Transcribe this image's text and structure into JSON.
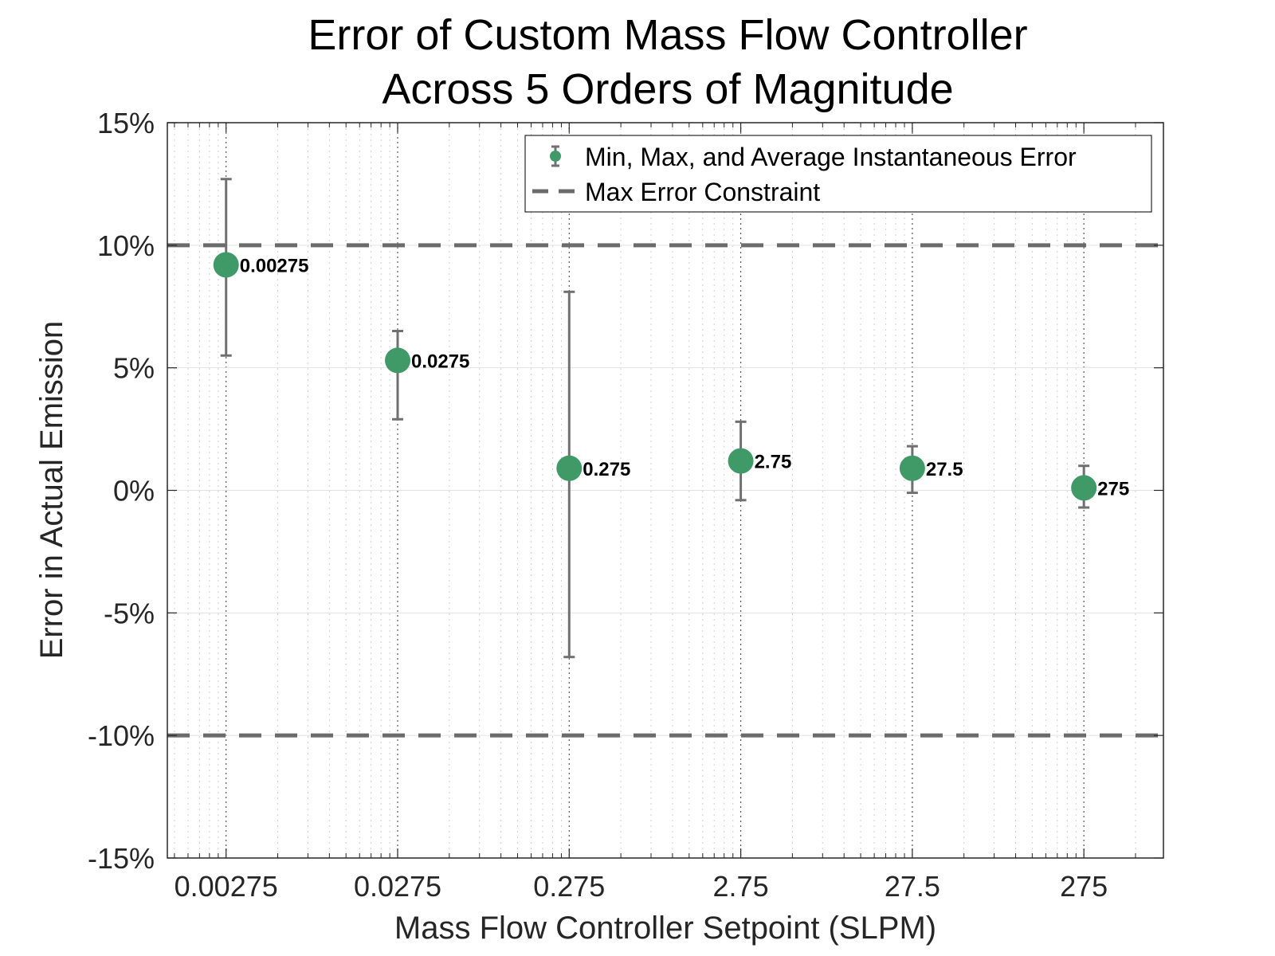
{
  "chart_data": {
    "type": "scatter",
    "title_lines": [
      "Error of Custom Mass Flow Controller",
      "Across 5 Orders of Magnitude"
    ],
    "xlabel": "Mass Flow Controller Setpoint (SLPM)",
    "ylabel": "Error in Actual Emission",
    "x_scale": "log",
    "xlim": [
      0.00125,
      800
    ],
    "ylim": [
      -15,
      15
    ],
    "y_unit": "%",
    "x_ticks": [
      {
        "value": 0.00275,
        "label": "0.00275"
      },
      {
        "value": 0.0275,
        "label": "0.0275"
      },
      {
        "value": 0.275,
        "label": "0.275"
      },
      {
        "value": 2.75,
        "label": "2.75"
      },
      {
        "value": 27.5,
        "label": "27.5"
      },
      {
        "value": 275,
        "label": "275"
      }
    ],
    "y_ticks": [
      {
        "value": 15,
        "label": "15%"
      },
      {
        "value": 10,
        "label": "10%"
      },
      {
        "value": 5,
        "label": "5%"
      },
      {
        "value": 0,
        "label": "0%"
      },
      {
        "value": -5,
        "label": "-5%"
      },
      {
        "value": -10,
        "label": "-10%"
      },
      {
        "value": -15,
        "label": "-15%"
      }
    ],
    "grid": true,
    "legend_position": "top-right",
    "series": [
      {
        "name": "Min, Max, and Average Instantaneous Error",
        "color": "#3f9a68",
        "errorbar_color": "#707070",
        "points": [
          {
            "x": 0.00275,
            "y": 9.2,
            "min": 5.5,
            "max": 12.7,
            "label": "0.00275"
          },
          {
            "x": 0.0275,
            "y": 5.3,
            "min": 2.9,
            "max": 6.5,
            "label": "0.0275"
          },
          {
            "x": 0.275,
            "y": 0.9,
            "min": -6.8,
            "max": 8.1,
            "label": "0.275"
          },
          {
            "x": 2.75,
            "y": 1.2,
            "min": -0.4,
            "max": 2.8,
            "label": "2.75"
          },
          {
            "x": 27.5,
            "y": 0.9,
            "min": -0.1,
            "max": 1.8,
            "label": "27.5"
          },
          {
            "x": 275,
            "y": 0.1,
            "min": -0.7,
            "max": 1.0,
            "label": "275"
          }
        ]
      },
      {
        "name": "Max Error Constraint",
        "color": "#6b6b6b",
        "line_style": "dashed",
        "y_values": [
          10,
          -10
        ]
      }
    ]
  }
}
